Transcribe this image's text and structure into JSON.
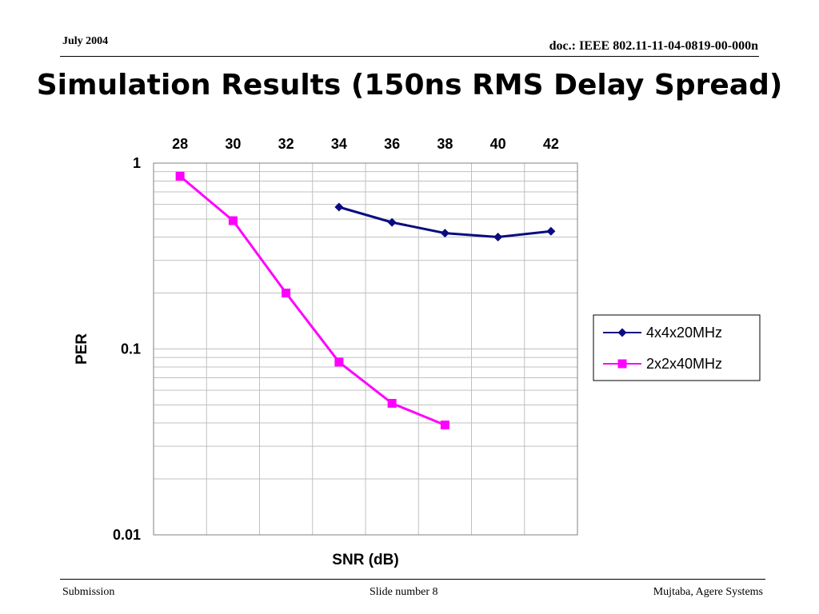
{
  "header": {
    "date": "July 2004",
    "doc_id": "doc.: IEEE 802.11-11-04-0819-00-000n"
  },
  "slide_title": "Simulation Results (150ns RMS Delay Spread)",
  "footer": {
    "left": "Submission",
    "center": "Slide number 8",
    "right": "Mujtaba, Agere Systems"
  },
  "colors": {
    "series1": "#0b0b80",
    "series2": "#ff00ff",
    "grid": "#c0c0c0"
  },
  "chart_data": {
    "type": "line",
    "title": "",
    "xlabel": "SNR (dB)",
    "ylabel": "PER",
    "x_ticks": [
      28,
      30,
      32,
      34,
      36,
      38,
      40,
      42
    ],
    "xlim": [
      27,
      43
    ],
    "x_axis_position": "top",
    "y_scale": "log",
    "ylim": [
      0.01,
      1
    ],
    "y_ticks": [
      "1",
      "0.1",
      "0.01"
    ],
    "grid": true,
    "legend_position": "right",
    "series": [
      {
        "name": "4x4x20MHz",
        "color": "#0b0b80",
        "marker": "diamond",
        "x": [
          34,
          36,
          38,
          40,
          42
        ],
        "y": [
          0.58,
          0.48,
          0.42,
          0.4,
          0.43
        ]
      },
      {
        "name": "2x2x40MHz",
        "color": "#ff00ff",
        "marker": "square",
        "x": [
          28,
          30,
          32,
          34,
          36,
          38
        ],
        "y": [
          0.85,
          0.49,
          0.2,
          0.085,
          0.051,
          0.039
        ]
      }
    ]
  }
}
